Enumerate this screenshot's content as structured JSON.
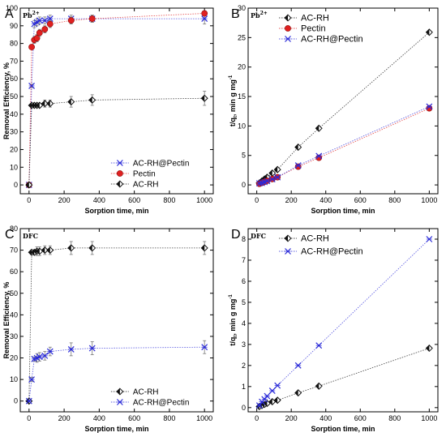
{
  "colors": {
    "ac_rh": "#111111",
    "pectin": "#e02020",
    "ac_rh_pectin": "#2a2ad8"
  },
  "chart_data": [
    {
      "panel": "A",
      "type": "scatter",
      "inset_label": "Pb2+",
      "xlabel": "Sorption time, min",
      "ylabel": "Removal Efficiency, %",
      "xlim": [
        -50,
        1050
      ],
      "ylim": [
        -5,
        100
      ],
      "xticks": [
        0,
        200,
        400,
        600,
        800,
        1000
      ],
      "yticks": [
        0,
        10,
        20,
        30,
        40,
        50,
        60,
        70,
        80,
        90,
        100
      ],
      "legend_position": "bottom-right",
      "series": [
        {
          "name": "AC-RH@Pectin",
          "marker": "x",
          "color_key": "ac_rh_pectin",
          "x": [
            0,
            15,
            30,
            45,
            60,
            90,
            120,
            240,
            360,
            1000
          ],
          "y": [
            0,
            56,
            91,
            92,
            93,
            93,
            94,
            94,
            94,
            94
          ],
          "err": [
            0,
            1,
            2,
            2,
            2,
            2,
            2,
            2,
            2,
            3
          ]
        },
        {
          "name": "Pectin",
          "marker": "circle",
          "color_key": "pectin",
          "x": [
            0,
            15,
            30,
            45,
            60,
            90,
            120,
            240,
            360,
            1000
          ],
          "y": [
            0,
            78,
            82,
            83,
            86,
            88,
            91,
            93,
            94,
            97
          ],
          "err": [
            0,
            1,
            2,
            2,
            2,
            2,
            2,
            2,
            2,
            1
          ]
        },
        {
          "name": "AC-RH",
          "marker": "diamond",
          "color_key": "ac_rh",
          "x": [
            0,
            15,
            30,
            45,
            60,
            90,
            120,
            240,
            360,
            1000
          ],
          "y": [
            0,
            45,
            45,
            45,
            45,
            46,
            46,
            47,
            48,
            49
          ],
          "err": [
            0,
            1,
            1,
            1,
            1,
            2,
            2,
            3,
            3,
            4
          ]
        }
      ]
    },
    {
      "panel": "B",
      "type": "scatter",
      "inset_label": "Pb2+",
      "xlabel": "Sorption time, min",
      "ylabel": "t/qt, min g mg-1",
      "xlim": [
        -50,
        1050
      ],
      "ylim": [
        -1.5,
        30
      ],
      "xticks": [
        0,
        200,
        400,
        600,
        800,
        1000
      ],
      "yticks": [
        0,
        5,
        10,
        15,
        20,
        25,
        30
      ],
      "legend_position": "top-left",
      "series": [
        {
          "name": "AC-RH",
          "marker": "diamond",
          "color_key": "ac_rh",
          "x": [
            15,
            30,
            45,
            60,
            90,
            120,
            240,
            360,
            1000
          ],
          "y": [
            0.33,
            0.67,
            1.0,
            1.3,
            2.0,
            2.6,
            6.4,
            9.6,
            25.9
          ]
        },
        {
          "name": "Pectin",
          "marker": "circle",
          "color_key": "pectin",
          "x": [
            15,
            30,
            45,
            60,
            90,
            120,
            240,
            360,
            1000
          ],
          "y": [
            0.19,
            0.36,
            0.54,
            0.7,
            1.0,
            1.3,
            3.1,
            4.6,
            13.0
          ]
        },
        {
          "name": "AC-RH@Pectin",
          "marker": "x",
          "color_key": "ac_rh_pectin",
          "x": [
            15,
            30,
            45,
            60,
            90,
            120,
            240,
            360,
            1000
          ],
          "y": [
            0.27,
            0.33,
            0.49,
            0.65,
            0.97,
            1.3,
            3.3,
            4.9,
            13.3
          ]
        }
      ]
    },
    {
      "panel": "C",
      "type": "scatter",
      "inset_label": "DFC",
      "xlabel": "Sorption time, min",
      "ylabel": "Removal Efficiency, %",
      "xlim": [
        -50,
        1050
      ],
      "ylim": [
        -5,
        80
      ],
      "xticks": [
        0,
        200,
        400,
        600,
        800,
        1000
      ],
      "yticks": [
        0,
        10,
        20,
        30,
        40,
        50,
        60,
        70,
        80
      ],
      "legend_position": "bottom-right",
      "series": [
        {
          "name": "AC-RH",
          "marker": "diamond",
          "color_key": "ac_rh",
          "x": [
            0,
            15,
            30,
            45,
            60,
            90,
            120,
            240,
            360,
            1000
          ],
          "y": [
            0,
            69,
            69,
            69.5,
            69.5,
            70,
            70,
            71,
            71,
            71
          ],
          "err": [
            0,
            1,
            1,
            2,
            2,
            2,
            2,
            3,
            3,
            3
          ]
        },
        {
          "name": "AC-RH@Pectin",
          "marker": "x",
          "color_key": "ac_rh_pectin",
          "x": [
            0,
            15,
            30,
            45,
            60,
            90,
            120,
            240,
            360,
            1000
          ],
          "y": [
            0,
            10,
            19.5,
            20,
            20.5,
            21,
            23,
            24,
            24.5,
            25
          ],
          "err": [
            0,
            1,
            1,
            2,
            2,
            2,
            2,
            3,
            3,
            3
          ]
        }
      ]
    },
    {
      "panel": "D",
      "type": "scatter",
      "inset_label": "DFC",
      "xlabel": "Sorption time, min",
      "ylabel": "t/qt, min g mg-1",
      "xlim": [
        -50,
        1050
      ],
      "ylim": [
        -0.2,
        8.5
      ],
      "xticks": [
        0,
        200,
        400,
        600,
        800,
        1000
      ],
      "yticks": [
        0,
        1,
        2,
        3,
        4,
        5,
        6,
        7,
        8
      ],
      "legend_position": "top-left",
      "series": [
        {
          "name": "AC-RH",
          "marker": "diamond",
          "color_key": "ac_rh",
          "x": [
            15,
            30,
            45,
            60,
            90,
            120,
            240,
            360,
            1000
          ],
          "y": [
            0.05,
            0.1,
            0.15,
            0.2,
            0.28,
            0.35,
            0.7,
            1.02,
            2.82
          ]
        },
        {
          "name": "AC-RH@Pectin",
          "marker": "x",
          "color_key": "ac_rh_pectin",
          "x": [
            15,
            30,
            45,
            60,
            90,
            120,
            240,
            360,
            1000
          ],
          "y": [
            0.1,
            0.28,
            0.4,
            0.55,
            0.8,
            1.05,
            2.0,
            2.95,
            8.0
          ]
        }
      ]
    }
  ]
}
